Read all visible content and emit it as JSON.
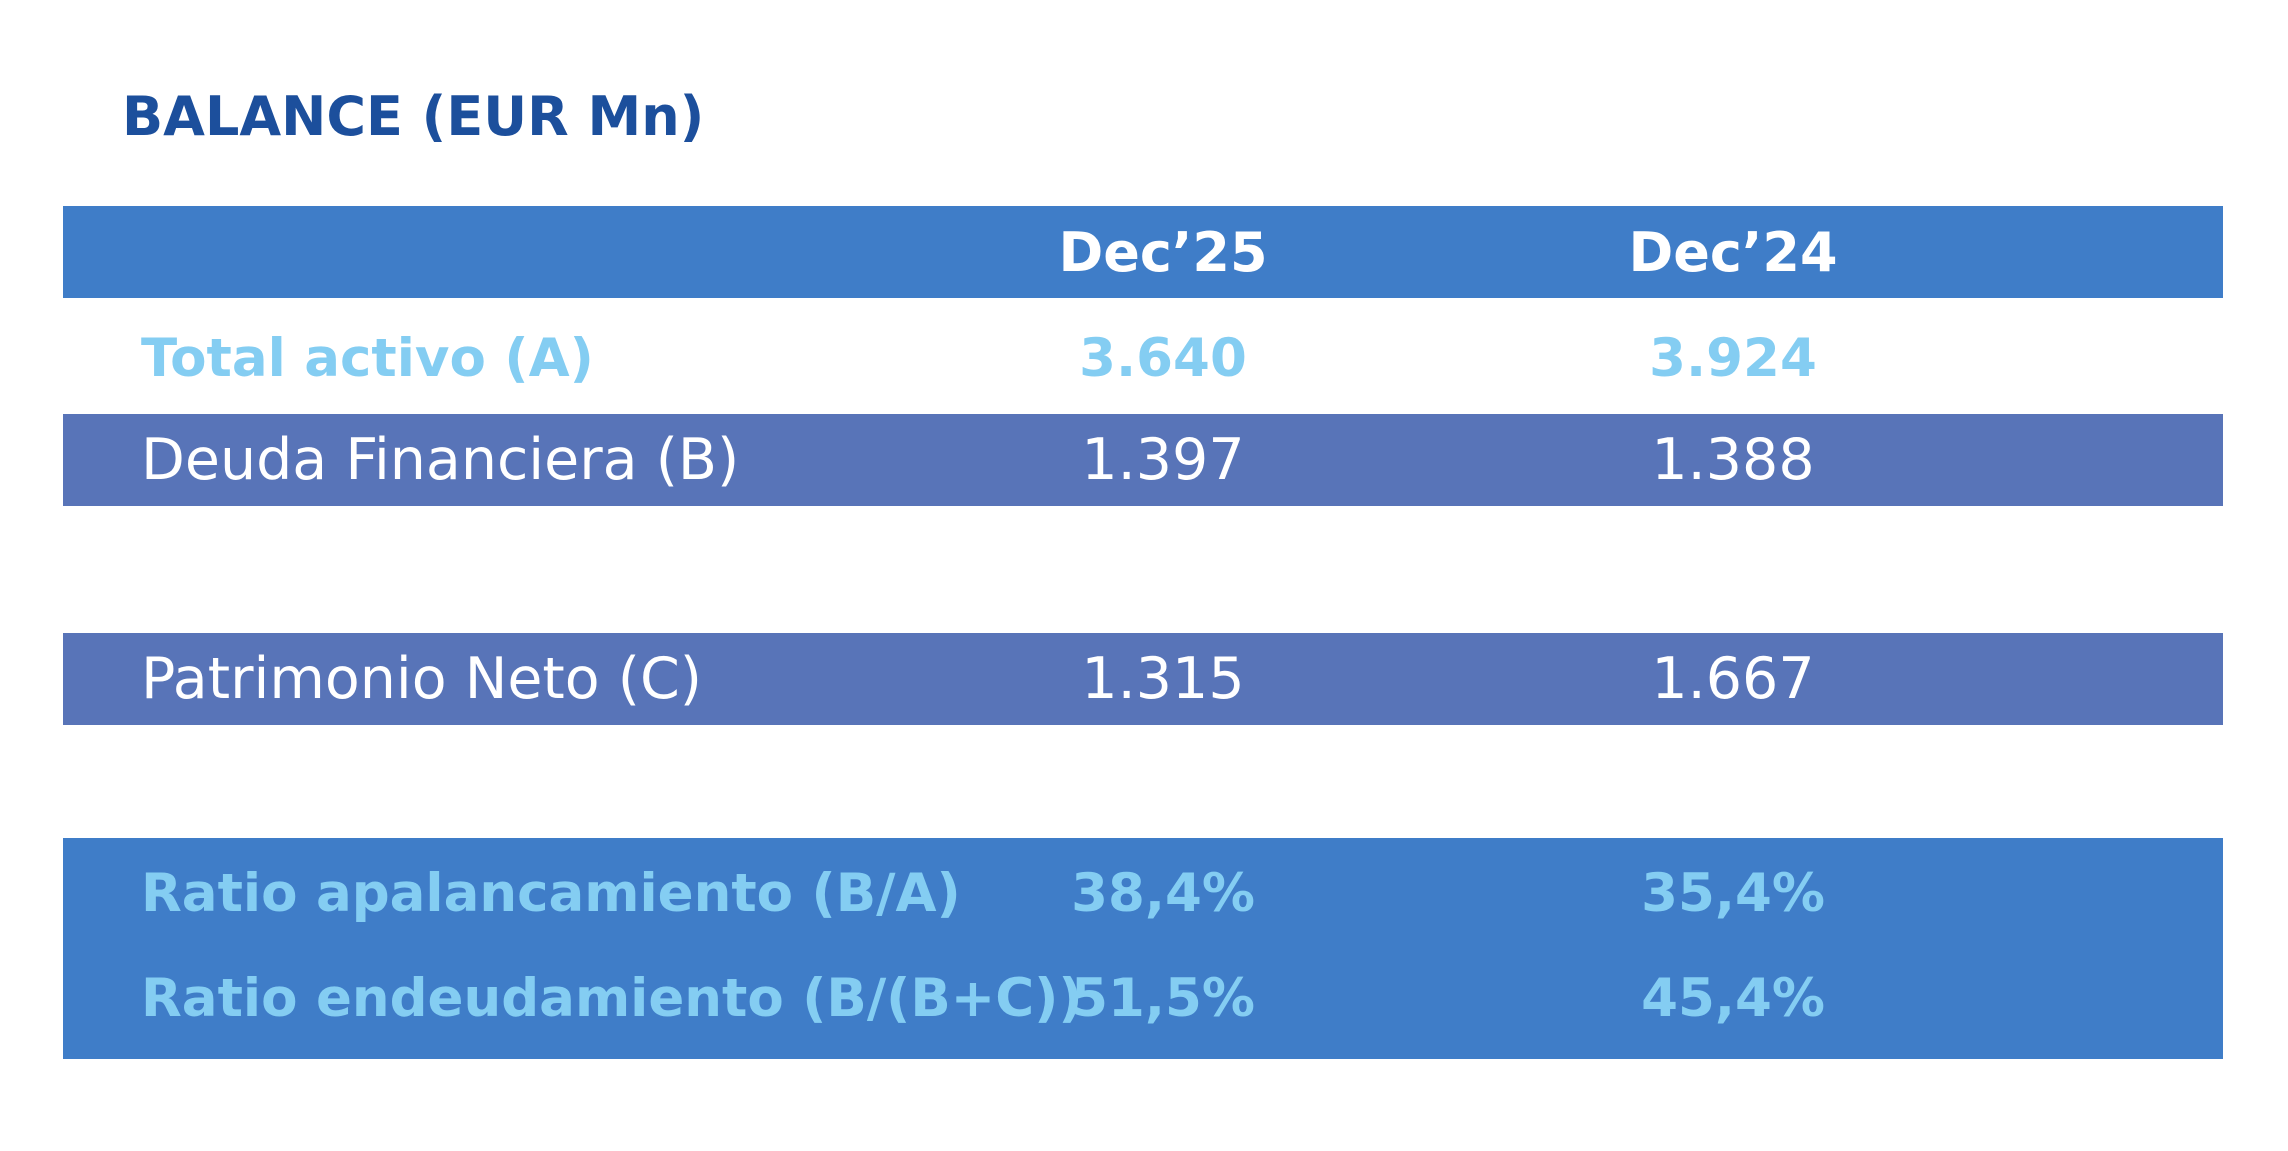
{
  "title": "BALANCE (EUR Mn)",
  "chart_data": {
    "type": "table",
    "title": "BALANCE (EUR Mn)",
    "columns": [
      "",
      "Dec’25",
      "Dec’24"
    ],
    "rows": [
      {
        "label": "Total activo (A)",
        "values": [
          "3.640",
          "3.924"
        ],
        "style": "highlight"
      },
      {
        "label": "Deuda Financiera (B)",
        "values": [
          "1.397",
          "1.388"
        ],
        "style": "band"
      },
      {
        "label": "Patrimonio Neto (C)",
        "values": [
          "1.315",
          "1.667"
        ],
        "style": "band"
      },
      {
        "label": "Ratio apalancamiento (B/A)",
        "values": [
          "38,4%",
          "35,4%"
        ],
        "style": "ratio"
      },
      {
        "label": "Ratio endeudamiento (B/(B+C))",
        "values": [
          "51,5%",
          "45,4%"
        ],
        "style": "ratio"
      }
    ]
  },
  "colors": {
    "title": "#1c4f9c",
    "header_band": "#3f7dc8",
    "row_band": "#5874b8",
    "highlight_text": "#84cdf2",
    "header_text": "#ffffff"
  }
}
